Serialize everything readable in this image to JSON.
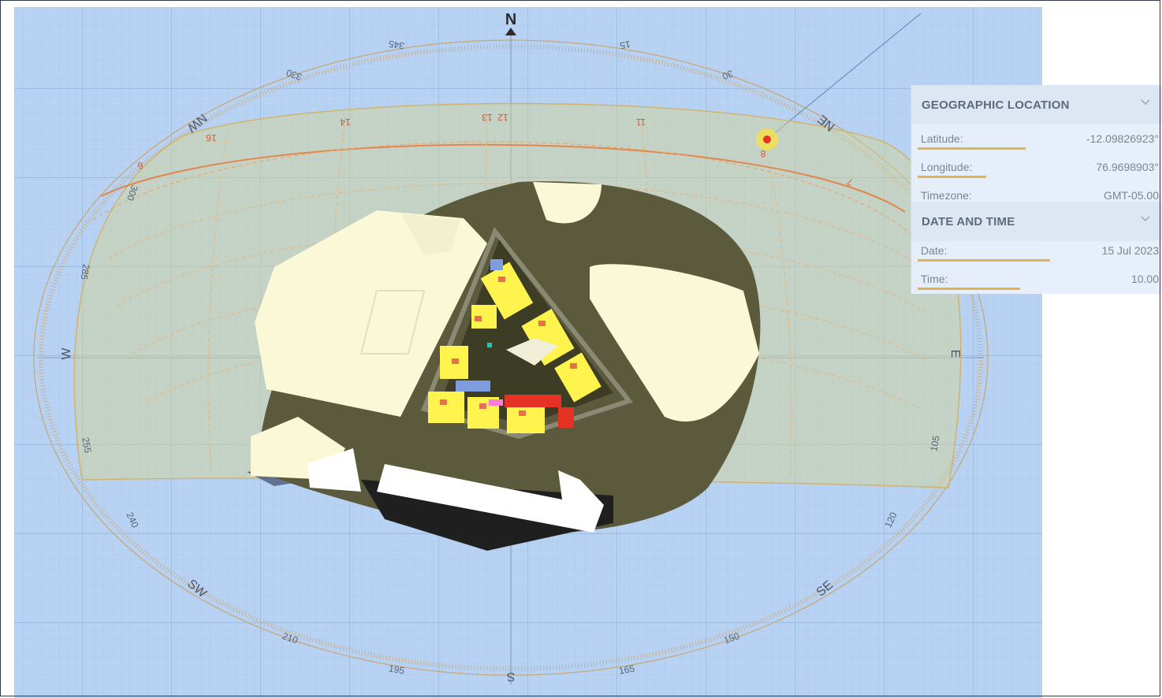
{
  "compass": {
    "cardinals": {
      "n": "N",
      "s": "S",
      "e": "E",
      "w": "W",
      "ne": "NE",
      "nw": "NW",
      "se": "SE",
      "sw": "SW"
    },
    "azimuth_labels": [
      "345",
      "330",
      "15",
      "30",
      "300",
      "285",
      "255",
      "240",
      "210",
      "195",
      "165",
      "150",
      "120",
      "105"
    ],
    "hour_labels": [
      "16",
      "14",
      "13",
      "12",
      "11",
      "8",
      "7",
      "6"
    ]
  },
  "panel": {
    "geo": {
      "title": "GEOGRAPHIC LOCATION",
      "latitude_label": "Latitude:",
      "latitude_value": "-12.09826923°",
      "longitude_label": "Longitude:",
      "longitude_value": "76.9698903°",
      "timezone_label": "Timezone:",
      "timezone_value": "GMT-05.00"
    },
    "datetime": {
      "title": "DATE AND TIME",
      "date_label": "Date:",
      "date_value": "15 Jul 2023",
      "time_label": "Time:",
      "time_value": "10.00"
    }
  },
  "colors": {
    "sky": "#b7d2f2",
    "sunpath": "#e8a86a",
    "current_sun": "#e8321e",
    "ground": "#5c5a3c",
    "building": "#fbf8d8"
  },
  "icons": [
    "chevron-down-icon",
    "north-arrow-icon",
    "sun-marker-icon"
  ]
}
